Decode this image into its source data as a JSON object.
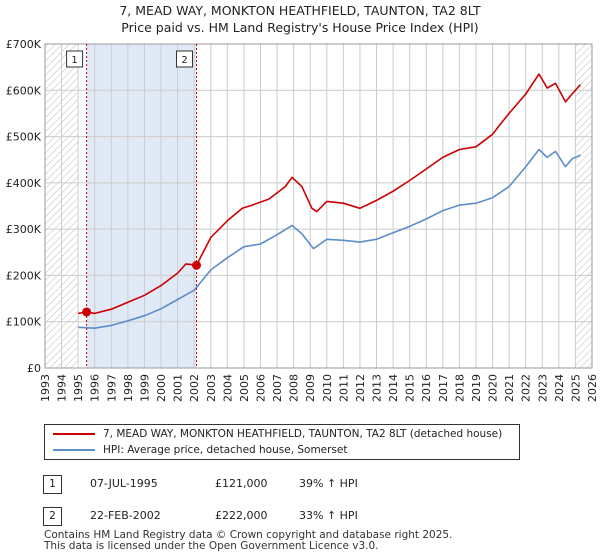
{
  "header": {
    "title_line1": "7, MEAD WAY, MONKTON HEATHFIELD, TAUNTON, TA2 8LT",
    "title_line2": "Price paid vs. HM Land Registry's House Price Index (HPI)"
  },
  "colors": {
    "price_line": "#cc0000",
    "hpi_line": "#5b8fc9",
    "shade": "#dbe5f4",
    "grid": "#cccccc",
    "marker_line": "#cc0000"
  },
  "chart_data": {
    "type": "line",
    "title": "Price paid vs. HM Land Registry's House Price Index (HPI)",
    "xlabel": "",
    "ylabel": "",
    "xlim": [
      1993,
      2026
    ],
    "ylim": [
      0,
      700000
    ],
    "x_ticks": [
      1993,
      1994,
      1995,
      1996,
      1997,
      1998,
      1999,
      2000,
      2001,
      2002,
      2003,
      2004,
      2005,
      2006,
      2007,
      2008,
      2009,
      2010,
      2011,
      2012,
      2013,
      2014,
      2015,
      2016,
      2017,
      2018,
      2019,
      2020,
      2021,
      2022,
      2023,
      2024,
      2025,
      2026
    ],
    "y_ticks": [
      0,
      100000,
      200000,
      300000,
      400000,
      500000,
      600000,
      700000
    ],
    "y_tick_labels": [
      "£0",
      "£100K",
      "£200K",
      "£300K",
      "£400K",
      "£500K",
      "£600K",
      "£700K"
    ],
    "grid": true,
    "hatched_ranges": [
      [
        1993,
        1995.0
      ],
      [
        2025.0,
        2026
      ]
    ],
    "shaded_range": [
      1995.51,
      2002.14
    ],
    "series": [
      {
        "name": "7, MEAD WAY, MONKTON HEATHFIELD, TAUNTON, TA2 8LT (detached house)",
        "color": "#cc0000",
        "x": [
          1995.0,
          1995.51,
          1996.0,
          1997.0,
          1998.0,
          1999.0,
          2000.0,
          2001.0,
          2001.5,
          2002.14,
          2003.0,
          2004.0,
          2004.9,
          2005.5,
          2006.5,
          2007.5,
          2007.9,
          2008.5,
          2009.1,
          2009.4,
          2010.0,
          2011.0,
          2012.0,
          2013.0,
          2014.0,
          2015.0,
          2016.0,
          2017.0,
          2018.0,
          2019.0,
          2020.0,
          2020.5,
          2021.0,
          2022.0,
          2022.8,
          2023.3,
          2023.8,
          2024.4,
          2024.8,
          2025.3
        ],
        "values": [
          118000,
          121000,
          118000,
          127000,
          142000,
          157000,
          178000,
          205000,
          225000,
          222000,
          282000,
          318000,
          345000,
          352000,
          365000,
          392000,
          412000,
          392000,
          345000,
          338000,
          360000,
          356000,
          345000,
          362000,
          382000,
          405000,
          430000,
          455000,
          472000,
          478000,
          505000,
          528000,
          550000,
          592000,
          635000,
          605000,
          615000,
          575000,
          592000,
          612000
        ]
      },
      {
        "name": "HPI: Average price, detached house, Somerset",
        "color": "#5b8fc9",
        "x": [
          1995.0,
          1996.0,
          1997.0,
          1998.0,
          1999.0,
          2000.0,
          2001.0,
          2002.0,
          2003.0,
          2004.0,
          2005.0,
          2006.0,
          2007.0,
          2007.9,
          2008.5,
          2009.2,
          2010.0,
          2011.0,
          2012.0,
          2013.0,
          2014.0,
          2015.0,
          2016.0,
          2017.0,
          2018.0,
          2019.0,
          2020.0,
          2021.0,
          2022.0,
          2022.8,
          2023.3,
          2023.8,
          2024.4,
          2024.8,
          2025.3
        ],
        "values": [
          88000,
          86000,
          92000,
          102000,
          113000,
          128000,
          148000,
          168000,
          212000,
          238000,
          262000,
          268000,
          288000,
          308000,
          290000,
          258000,
          278000,
          276000,
          272000,
          278000,
          292000,
          306000,
          322000,
          340000,
          352000,
          356000,
          368000,
          392000,
          435000,
          472000,
          455000,
          468000,
          435000,
          452000,
          460000
        ]
      }
    ],
    "sales": [
      {
        "label": "1",
        "x": 1995.51,
        "value": 121000
      },
      {
        "label": "2",
        "x": 2002.14,
        "value": 222000
      }
    ]
  },
  "legend": {
    "price_label": "7, MEAD WAY, MONKTON HEATHFIELD, TAUNTON, TA2 8LT (detached house)",
    "hpi_label": "HPI: Average price, detached house, Somerset"
  },
  "transactions": [
    {
      "num": "1",
      "date": "07-JUL-1995",
      "price": "£121,000",
      "hpi": "39% ↑ HPI"
    },
    {
      "num": "2",
      "date": "22-FEB-2002",
      "price": "£222,000",
      "hpi": "33% ↑ HPI"
    }
  ],
  "footer": {
    "line1": "Contains HM Land Registry data © Crown copyright and database right 2025.",
    "line2": "This data is licensed under the Open Government Licence v3.0."
  }
}
